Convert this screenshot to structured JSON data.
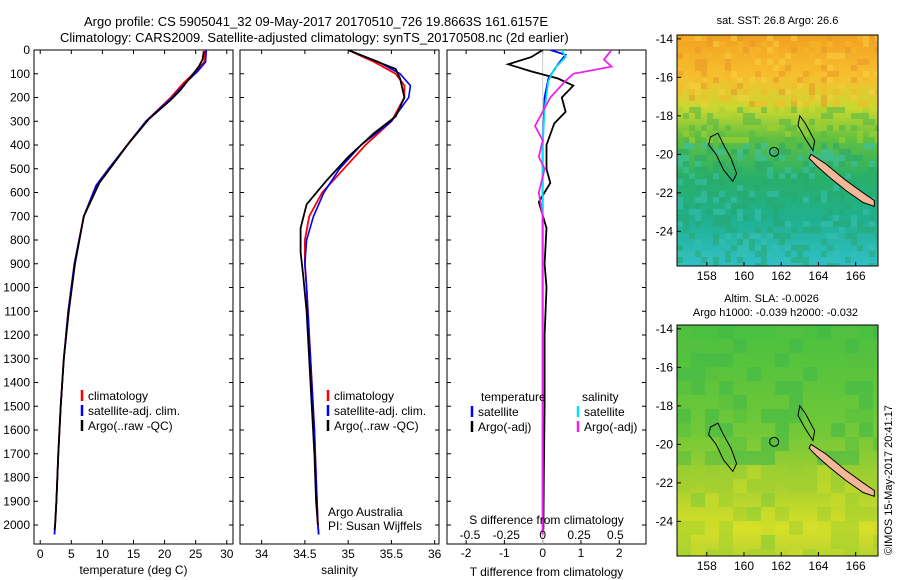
{
  "title_line1": "Argo profile: CS 5905041_32 09-May-2017 20170510_726 19.8663S 161.6157E",
  "title_line2": "Climatology: CARS2009. Satellite-adjusted climatology: synTS_20170508.nc (2d earlier)",
  "credit": "©IMOS 15-May-2017 20:41:17",
  "colors": {
    "climatology": "#ff0000",
    "satellite": "#0000ff",
    "argo": "#000000",
    "sal_satellite": "#00e5ee",
    "sal_argo": "#ee22ee"
  },
  "chart_data": [
    {
      "type": "line",
      "id": "temperature",
      "xlabel": "temperature (deg C)",
      "ylabel": "",
      "xlim": [
        -1,
        31
      ],
      "ylim": [
        2080,
        0
      ],
      "xticks": [
        0,
        5,
        10,
        15,
        20,
        25,
        30
      ],
      "xtick_labels": [
        "0",
        "5",
        "10",
        "15",
        "20",
        "25",
        "30"
      ],
      "yticks": [
        0,
        100,
        200,
        300,
        400,
        500,
        600,
        700,
        800,
        900,
        1000,
        1100,
        1200,
        1300,
        1400,
        1500,
        1600,
        1700,
        1800,
        1900,
        2000
      ],
      "ytick_labels": [
        "0",
        "100",
        "200",
        "300",
        "400",
        "500",
        "600",
        "700",
        "800",
        "900",
        "1000",
        "1100",
        "1200",
        "1300",
        "1400",
        "1500",
        "1600",
        "1700",
        "1800",
        "1900",
        "2000"
      ],
      "legend": {
        "entries": [
          "climatology",
          "satellite-adj. clim.",
          "Argo(..raw -QC)"
        ],
        "position": "lower-center"
      },
      "series": [
        {
          "name": "climatology",
          "color": "#ff0000",
          "points": [
            [
              26.5,
              0
            ],
            [
              26.4,
              50
            ],
            [
              25,
              90
            ],
            [
              23,
              140
            ],
            [
              21,
              200
            ],
            [
              17,
              300
            ],
            [
              14,
              400
            ],
            [
              11,
              500
            ],
            [
              9,
              570
            ],
            [
              7,
              700
            ],
            [
              5.5,
              900
            ],
            [
              4.5,
              1100
            ],
            [
              3.8,
              1300
            ],
            [
              3.3,
              1500
            ],
            [
              2.9,
              1700
            ],
            [
              2.6,
              1900
            ],
            [
              2.4,
              2000
            ],
            [
              2.3,
              2040
            ]
          ]
        },
        {
          "name": "satellite-adj. clim.",
          "color": "#0000ff",
          "points": [
            [
              26.7,
              0
            ],
            [
              26.6,
              50
            ],
            [
              25.3,
              90
            ],
            [
              23.3,
              140
            ],
            [
              21.2,
              200
            ],
            [
              17,
              300
            ],
            [
              14,
              400
            ],
            [
              11,
              500
            ],
            [
              9,
              570
            ],
            [
              7,
              700
            ],
            [
              5.5,
              900
            ],
            [
              4.5,
              1100
            ],
            [
              3.8,
              1300
            ],
            [
              3.3,
              1500
            ],
            [
              2.9,
              1700
            ],
            [
              2.6,
              1900
            ],
            [
              2.4,
              2000
            ],
            [
              2.3,
              2040
            ]
          ]
        },
        {
          "name": "Argo(..raw -QC)",
          "color": "#000000",
          "points": [
            [
              26.3,
              5
            ],
            [
              26.1,
              40
            ],
            [
              25.5,
              70
            ],
            [
              24,
              120
            ],
            [
              22.5,
              170
            ],
            [
              21,
              210
            ],
            [
              17.5,
              290
            ],
            [
              14,
              400
            ],
            [
              11.5,
              490
            ],
            [
              9.5,
              560
            ],
            [
              7,
              700
            ],
            [
              5.6,
              900
            ],
            [
              4.6,
              1100
            ],
            [
              3.8,
              1300
            ],
            [
              3.3,
              1500
            ],
            [
              2.9,
              1700
            ],
            [
              2.6,
              1900
            ],
            [
              2.4,
              2000
            ],
            [
              2.3,
              2020
            ]
          ]
        }
      ]
    },
    {
      "type": "line",
      "id": "salinity",
      "xlabel": "salinity",
      "ylabel": "",
      "xlim": [
        33.75,
        36.05
      ],
      "ylim": [
        2080,
        0
      ],
      "xticks": [
        34,
        34.5,
        35,
        35.5,
        36
      ],
      "xtick_labels": [
        "34",
        "34.5",
        "35",
        "35.5",
        "36"
      ],
      "legend": {
        "entries": [
          "climatology",
          "satellite-adj. clim.",
          "Argo(..raw -QC)"
        ],
        "position": "lower-right"
      },
      "annotation": [
        "Argo Australia",
        "PI: Susan Wijffels"
      ],
      "series": [
        {
          "name": "climatology",
          "color": "#ff0000",
          "points": [
            [
              35.0,
              0
            ],
            [
              35.3,
              50
            ],
            [
              35.55,
              100
            ],
            [
              35.65,
              150
            ],
            [
              35.65,
              200
            ],
            [
              35.5,
              300
            ],
            [
              35.2,
              400
            ],
            [
              34.95,
              500
            ],
            [
              34.7,
              600
            ],
            [
              34.55,
              700
            ],
            [
              34.5,
              800
            ],
            [
              34.5,
              900
            ],
            [
              34.52,
              1000
            ],
            [
              34.55,
              1200
            ],
            [
              34.58,
              1400
            ],
            [
              34.61,
              1600
            ],
            [
              34.63,
              1800
            ],
            [
              34.65,
              2000
            ],
            [
              34.66,
              2040
            ]
          ]
        },
        {
          "name": "satellite-adj. clim.",
          "color": "#0000ff",
          "points": [
            [
              35.0,
              0
            ],
            [
              35.35,
              50
            ],
            [
              35.6,
              100
            ],
            [
              35.72,
              150
            ],
            [
              35.7,
              200
            ],
            [
              35.5,
              300
            ],
            [
              35.15,
              400
            ],
            [
              34.9,
              500
            ],
            [
              34.72,
              600
            ],
            [
              34.6,
              700
            ],
            [
              34.52,
              800
            ],
            [
              34.5,
              900
            ],
            [
              34.52,
              1000
            ],
            [
              34.55,
              1200
            ],
            [
              34.58,
              1400
            ],
            [
              34.61,
              1600
            ],
            [
              34.63,
              1800
            ],
            [
              34.65,
              2000
            ],
            [
              34.66,
              2040
            ]
          ]
        },
        {
          "name": "Argo(..raw -QC)",
          "color": "#000000",
          "points": [
            [
              35.0,
              0
            ],
            [
              35.2,
              30
            ],
            [
              35.55,
              80
            ],
            [
              35.6,
              120
            ],
            [
              35.65,
              200
            ],
            [
              35.55,
              280
            ],
            [
              35.3,
              350
            ],
            [
              35.0,
              450
            ],
            [
              34.75,
              550
            ],
            [
              34.52,
              650
            ],
            [
              34.45,
              750
            ],
            [
              34.45,
              850
            ],
            [
              34.48,
              950
            ],
            [
              34.52,
              1100
            ],
            [
              34.55,
              1300
            ],
            [
              34.58,
              1500
            ],
            [
              34.61,
              1700
            ],
            [
              34.63,
              1900
            ],
            [
              34.65,
              2000
            ]
          ]
        }
      ]
    },
    {
      "type": "line",
      "id": "difference",
      "xlabel": "T difference from climatology",
      "xlabel_top": "S difference from climatology",
      "xlim": [
        -2.5,
        2.7
      ],
      "ylim": [
        2080,
        0
      ],
      "xticks": [
        -2,
        -1,
        0,
        1,
        2
      ],
      "xtick_labels": [
        "-2",
        "-1",
        "0",
        "1",
        "2"
      ],
      "s_ticks": [
        -0.5,
        -0.25,
        0,
        0.25,
        0.5
      ],
      "s_tick_labels": [
        "-0.5",
        "-0.25",
        "0",
        "0.25",
        "0.5"
      ],
      "legend": {
        "groups": [
          {
            "heading": "temperature",
            "entries": [
              "satellite",
              "Argo(-adj)"
            ]
          },
          {
            "heading": "salinity",
            "entries": [
              "satellite",
              "Argo(-adj)"
            ]
          }
        ],
        "position": "lower-center"
      },
      "series": [
        {
          "name": "temperature satellite",
          "color": "#0000ff",
          "points": [
            [
              0.2,
              0
            ],
            [
              0.6,
              20
            ],
            [
              0.4,
              60
            ],
            [
              0.15,
              120
            ],
            [
              0.05,
              200
            ],
            [
              0.0,
              400
            ],
            [
              0,
              2040
            ]
          ]
        },
        {
          "name": "temperature Argo(-adj)",
          "color": "#000000",
          "points": [
            [
              0,
              0
            ],
            [
              -0.3,
              30
            ],
            [
              -0.9,
              60
            ],
            [
              -0.3,
              90
            ],
            [
              0.4,
              120
            ],
            [
              0.8,
              150
            ],
            [
              0.5,
              200
            ],
            [
              0.6,
              260
            ],
            [
              0.3,
              310
            ],
            [
              0.1,
              400
            ],
            [
              0.1,
              500
            ],
            [
              0.2,
              560
            ],
            [
              -0.1,
              640
            ],
            [
              0.1,
              750
            ],
            [
              0.05,
              900
            ],
            [
              0.1,
              1000
            ],
            [
              0.05,
              1200
            ],
            [
              0.05,
              1500
            ],
            [
              0.03,
              1800
            ],
            [
              0.02,
              2020
            ]
          ]
        },
        {
          "name": "salinity satellite",
          "color": "#00e5ee",
          "points": [
            [
              0.5,
              0
            ],
            [
              0.6,
              30
            ],
            [
              0.3,
              80
            ],
            [
              0.15,
              130
            ],
            [
              0.05,
              250
            ],
            [
              0.0,
              400
            ],
            [
              0,
              2040
            ]
          ]
        },
        {
          "name": "salinity Argo(-adj)",
          "color": "#ee22ee",
          "points": [
            [
              1.8,
              0
            ],
            [
              1.6,
              40
            ],
            [
              1.8,
              70
            ],
            [
              0.8,
              100
            ],
            [
              0.6,
              130
            ],
            [
              0.2,
              200
            ],
            [
              -0.2,
              320
            ],
            [
              0,
              380
            ],
            [
              -0.1,
              450
            ],
            [
              0.05,
              500
            ],
            [
              -0.1,
              600
            ],
            [
              0,
              700
            ],
            [
              0,
              1000
            ],
            [
              0,
              1500
            ],
            [
              0,
              2040
            ]
          ]
        }
      ]
    },
    {
      "type": "heatmap",
      "id": "sst_map",
      "title": "sat. SST: 26.8  Argo: 26.6",
      "xlim": [
        156.4,
        167.2
      ],
      "ylim": [
        -25.8,
        -13.8
      ],
      "xticks": [
        158,
        160,
        162,
        164,
        166
      ],
      "xtick_labels": [
        "158",
        "160",
        "162",
        "164",
        "166"
      ],
      "yticks": [
        -14,
        -16,
        -18,
        -20,
        -22,
        -24
      ],
      "ytick_labels": [
        "-14",
        "-16",
        "-18",
        "-20",
        "-22",
        "-24"
      ],
      "marker": [
        161.62,
        -19.87
      ]
    },
    {
      "type": "heatmap",
      "id": "sla_map",
      "title_line1": "Altim. SLA: -0.0026",
      "title_line2": "Argo h1000: -0.039 h2000: -0.032",
      "xlim": [
        156.4,
        167.2
      ],
      "ylim": [
        -25.8,
        -13.8
      ],
      "xticks": [
        158,
        160,
        162,
        164,
        166
      ],
      "xtick_labels": [
        "158",
        "160",
        "162",
        "164",
        "166"
      ],
      "yticks": [
        -14,
        -16,
        -18,
        -20,
        -22,
        -24
      ],
      "ytick_labels": [
        "-14",
        "-16",
        "-18",
        "-20",
        "-22",
        "-24"
      ],
      "marker": [
        161.62,
        -19.87
      ]
    }
  ]
}
